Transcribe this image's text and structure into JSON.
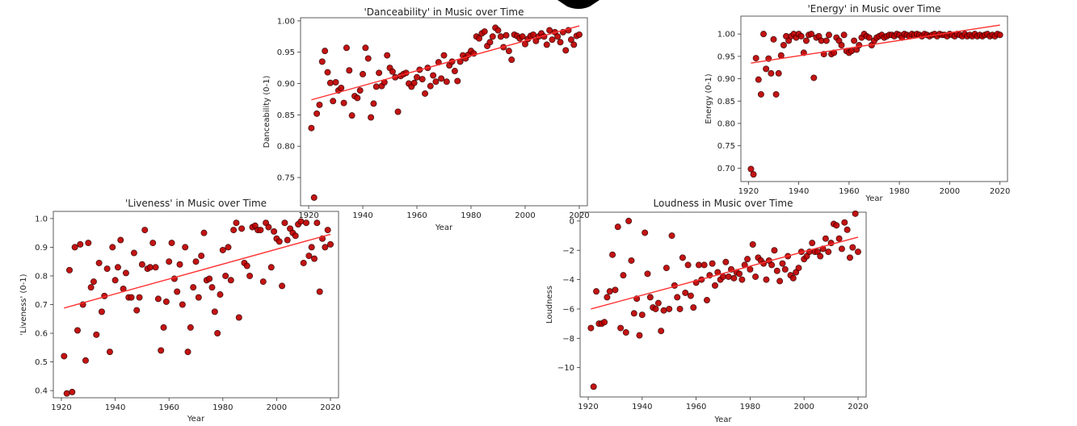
{
  "chart_data": [
    {
      "type": "scatter",
      "title": "'Danceability' in Music over Time",
      "xlabel": "Year",
      "ylabel": "Danceability (0-1)",
      "xlim": [
        1917,
        2023
      ],
      "ylim": [
        0.705,
        1.005
      ],
      "xticks": [
        1920,
        1940,
        1960,
        1980,
        2000,
        2020
      ],
      "yticks": [
        0.75,
        0.8,
        0.85,
        0.9,
        0.95,
        1.0
      ],
      "ytick_labels": [
        "0.75",
        "0.80",
        "0.85",
        "0.90",
        "0.95",
        "1.00"
      ],
      "series": [
        {
          "x": [
            1921,
            1922,
            1923,
            1924,
            1925,
            1926,
            1927,
            1928,
            1929,
            1930,
            1931,
            1932,
            1933,
            1934,
            1935,
            1936,
            1937,
            1938,
            1939,
            1940,
            1941,
            1942,
            1943,
            1944,
            1945,
            1946,
            1947,
            1948,
            1949,
            1950,
            1951,
            1952,
            1953,
            1954,
            1955,
            1956,
            1957,
            1958,
            1959,
            1960,
            1961,
            1962,
            1963,
            1964,
            1965,
            1966,
            1967,
            1968,
            1969,
            1970,
            1971,
            1972,
            1973,
            1974,
            1975,
            1976,
            1977,
            1978,
            1979,
            1980,
            1981,
            1982,
            1983,
            1984,
            1985,
            1986,
            1987,
            1988,
            1989,
            1990,
            1991,
            1992,
            1993,
            1994,
            1995,
            1996,
            1997,
            1998,
            1999,
            2000,
            2001,
            2002,
            2003,
            2004,
            2005,
            2006,
            2007,
            2008,
            2009,
            2010,
            2011,
            2012,
            2013,
            2014,
            2015,
            2016,
            2017,
            2018,
            2019,
            2020
          ],
          "y": [
            0.829,
            0.718,
            0.852,
            0.866,
            0.935,
            0.952,
            0.918,
            0.901,
            0.872,
            0.902,
            0.889,
            0.893,
            0.869,
            0.957,
            0.921,
            0.849,
            0.88,
            0.877,
            0.889,
            0.915,
            0.957,
            0.94,
            0.846,
            0.868,
            0.895,
            0.917,
            0.896,
            0.902,
            0.945,
            0.925,
            0.919,
            0.91,
            0.855,
            0.912,
            0.915,
            0.917,
            0.9,
            0.895,
            0.901,
            0.91,
            0.922,
            0.907,
            0.884,
            0.925,
            0.896,
            0.913,
            0.903,
            0.934,
            0.908,
            0.945,
            0.903,
            0.929,
            0.935,
            0.92,
            0.904,
            0.935,
            0.945,
            0.94,
            0.946,
            0.952,
            0.948,
            0.975,
            0.972,
            0.98,
            0.983,
            0.96,
            0.966,
            0.975,
            0.989,
            0.985,
            0.975,
            0.958,
            0.977,
            0.952,
            0.938,
            0.978,
            0.976,
            0.972,
            0.975,
            0.963,
            0.971,
            0.976,
            0.978,
            0.968,
            0.975,
            0.98,
            0.975,
            0.962,
            0.985,
            0.97,
            0.982,
            0.975,
            0.966,
            0.982,
            0.953,
            0.985,
            0.97,
            0.962,
            0.976,
            0.978
          ]
        }
      ],
      "trend": [
        [
          1921,
          0.874
        ],
        [
          2020,
          0.992
        ]
      ]
    },
    {
      "type": "scatter",
      "title": "'Energy' in Music over Time",
      "xlabel": "Year",
      "ylabel": "Energy (0-1)",
      "xlim": [
        1917,
        2023
      ],
      "ylim": [
        0.67,
        1.04
      ],
      "xticks": [
        1920,
        1940,
        1960,
        1980,
        2000,
        2020
      ],
      "yticks": [
        0.7,
        0.75,
        0.8,
        0.85,
        0.9,
        0.95,
        1.0
      ],
      "ytick_labels": [
        "0.70",
        "0.75",
        "0.80",
        "0.85",
        "0.90",
        "0.95",
        "1.00"
      ],
      "series": [
        {
          "x": [
            1921,
            1922,
            1923,
            1924,
            1925,
            1926,
            1927,
            1928,
            1929,
            1930,
            1931,
            1932,
            1933,
            1934,
            1935,
            1936,
            1937,
            1938,
            1939,
            1940,
            1941,
            1942,
            1943,
            1944,
            1945,
            1946,
            1947,
            1948,
            1949,
            1950,
            1951,
            1952,
            1953,
            1954,
            1955,
            1956,
            1957,
            1958,
            1959,
            1960,
            1961,
            1962,
            1963,
            1964,
            1965,
            1966,
            1967,
            1968,
            1969,
            1970,
            1971,
            1972,
            1973,
            1974,
            1975,
            1976,
            1977,
            1978,
            1979,
            1980,
            1981,
            1982,
            1983,
            1984,
            1985,
            1986,
            1987,
            1988,
            1989,
            1990,
            1991,
            1992,
            1993,
            1994,
            1995,
            1996,
            1997,
            1998,
            1999,
            2000,
            2001,
            2002,
            2003,
            2004,
            2005,
            2006,
            2007,
            2008,
            2009,
            2010,
            2011,
            2012,
            2013,
            2014,
            2015,
            2016,
            2017,
            2018,
            2019,
            2020
          ],
          "y": [
            0.698,
            0.686,
            0.946,
            0.898,
            0.865,
            1.0,
            0.922,
            0.945,
            0.912,
            0.988,
            0.865,
            0.912,
            0.952,
            0.975,
            0.995,
            0.985,
            0.995,
            1.0,
            0.992,
            1.0,
            0.995,
            0.958,
            0.985,
            0.998,
            1.0,
            0.902,
            0.992,
            0.995,
            0.985,
            0.955,
            0.985,
            0.998,
            0.955,
            0.958,
            0.992,
            0.985,
            0.975,
            0.998,
            0.962,
            0.958,
            0.962,
            0.985,
            0.965,
            0.975,
            0.992,
            1.0,
            0.995,
            0.992,
            0.975,
            0.985,
            0.992,
            0.995,
            0.998,
            0.992,
            0.995,
            0.998,
            0.998,
            0.995,
            1.0,
            0.998,
            0.992,
            1.0,
            0.998,
            0.995,
            1.0,
            0.998,
            1.0,
            0.998,
            0.995,
            1.0,
            0.998,
            0.995,
            0.998,
            1.0,
            0.995,
            1.0,
            0.998,
            0.998,
            0.995,
            1.0,
            0.998,
            0.995,
            1.0,
            0.998,
            0.995,
            1.0,
            0.995,
            0.998,
            0.995,
            1.0,
            0.995,
            0.998,
            0.995,
            0.998,
            1.0,
            0.995,
            0.998,
            0.995,
            1.0,
            0.998
          ]
        }
      ],
      "trend": [
        [
          1921,
          0.935
        ],
        [
          2020,
          1.02
        ]
      ]
    },
    {
      "type": "scatter",
      "title": "'Liveness' in Music over Time",
      "xlabel": "Year",
      "ylabel": "'Liveness' (0-1)",
      "xlim": [
        1917,
        2023
      ],
      "ylim": [
        0.375,
        1.025
      ],
      "xticks": [
        1920,
        1940,
        1960,
        1980,
        2000,
        2020
      ],
      "yticks": [
        0.4,
        0.5,
        0.6,
        0.7,
        0.8,
        0.9,
        1.0
      ],
      "ytick_labels": [
        "0.4",
        "0.5",
        "0.6",
        "0.7",
        "0.8",
        "0.9",
        "1.0"
      ],
      "series": [
        {
          "x": [
            1921,
            1922,
            1923,
            1924,
            1925,
            1926,
            1927,
            1928,
            1929,
            1930,
            1931,
            1932,
            1933,
            1934,
            1935,
            1936,
            1937,
            1938,
            1939,
            1940,
            1941,
            1942,
            1943,
            1944,
            1945,
            1946,
            1947,
            1948,
            1949,
            1950,
            1951,
            1952,
            1953,
            1954,
            1955,
            1956,
            1957,
            1958,
            1959,
            1960,
            1961,
            1962,
            1963,
            1964,
            1965,
            1966,
            1967,
            1968,
            1969,
            1970,
            1971,
            1972,
            1973,
            1974,
            1975,
            1976,
            1977,
            1978,
            1979,
            1980,
            1981,
            1982,
            1983,
            1984,
            1985,
            1986,
            1987,
            1988,
            1989,
            1990,
            1991,
            1992,
            1993,
            1994,
            1995,
            1996,
            1997,
            1998,
            1999,
            2000,
            2001,
            2002,
            2003,
            2004,
            2005,
            2006,
            2007,
            2008,
            2009,
            2010,
            2011,
            2012,
            2013,
            2014,
            2015,
            2016,
            2017,
            2018,
            2019,
            2020
          ],
          "y": [
            0.52,
            0.39,
            0.82,
            0.395,
            0.9,
            0.61,
            0.91,
            0.7,
            0.505,
            0.915,
            0.76,
            0.78,
            0.595,
            0.845,
            0.675,
            0.73,
            0.825,
            0.535,
            0.9,
            0.785,
            0.83,
            0.925,
            0.755,
            0.81,
            0.725,
            0.725,
            0.88,
            0.68,
            0.725,
            0.84,
            0.96,
            0.825,
            0.83,
            0.915,
            0.83,
            0.72,
            0.54,
            0.62,
            0.71,
            0.85,
            0.915,
            0.79,
            0.745,
            0.84,
            0.7,
            0.9,
            0.535,
            0.62,
            0.76,
            0.85,
            0.725,
            0.87,
            0.95,
            0.785,
            0.79,
            0.76,
            0.675,
            0.6,
            0.735,
            0.89,
            0.8,
            0.9,
            0.785,
            0.96,
            0.985,
            0.655,
            0.965,
            0.845,
            0.835,
            0.8,
            0.97,
            0.975,
            0.96,
            0.96,
            0.78,
            0.985,
            0.97,
            0.83,
            0.955,
            0.93,
            0.92,
            0.765,
            0.985,
            0.925,
            0.965,
            0.95,
            0.94,
            0.98,
            0.99,
            0.845,
            0.985,
            0.87,
            0.9,
            0.86,
            0.985,
            0.745,
            0.93,
            0.9,
            0.96,
            0.91
          ],
          "_": null
        }
      ],
      "trend": [
        [
          1921,
          0.688
        ],
        [
          2020,
          0.945
        ]
      ]
    },
    {
      "type": "scatter",
      "title": "Loudness in Music over Time",
      "xlabel": "Year",
      "ylabel": "Loudness",
      "xlim": [
        1917,
        2023
      ],
      "ylim": [
        -12.0,
        0.6
      ],
      "xticks": [
        1920,
        1940,
        1960,
        1980,
        2000,
        2020
      ],
      "yticks": [
        0,
        -2,
        -4,
        -6,
        -8,
        -10
      ],
      "ytick_labels": [
        "0",
        "−2",
        "−4",
        "−6",
        "−8",
        "−10"
      ],
      "series": [
        {
          "x": [
            1921,
            1922,
            1923,
            1924,
            1925,
            1926,
            1927,
            1928,
            1929,
            1930,
            1931,
            1932,
            1933,
            1934,
            1935,
            1936,
            1937,
            1938,
            1939,
            1940,
            1941,
            1942,
            1943,
            1944,
            1945,
            1946,
            1947,
            1948,
            1949,
            1950,
            1951,
            1952,
            1953,
            1954,
            1955,
            1956,
            1957,
            1958,
            1959,
            1960,
            1961,
            1962,
            1963,
            1964,
            1965,
            1966,
            1967,
            1968,
            1969,
            1970,
            1971,
            1972,
            1973,
            1974,
            1975,
            1976,
            1977,
            1978,
            1979,
            1980,
            1981,
            1982,
            1983,
            1984,
            1985,
            1986,
            1987,
            1988,
            1989,
            1990,
            1991,
            1992,
            1993,
            1994,
            1995,
            1996,
            1997,
            1998,
            1999,
            2000,
            2001,
            2002,
            2003,
            2004,
            2005,
            2006,
            2007,
            2008,
            2009,
            2010,
            2011,
            2012,
            2013,
            2014,
            2015,
            2016,
            2017,
            2018,
            2019,
            2020
          ],
          "y": [
            -7.3,
            -11.3,
            -4.8,
            -7.0,
            -7.0,
            -6.9,
            -5.2,
            -4.8,
            -2.3,
            -4.7,
            -0.4,
            -7.3,
            -3.7,
            -7.6,
            0.0,
            -2.7,
            -6.3,
            -5.3,
            -7.8,
            -6.4,
            -0.8,
            -3.6,
            -5.2,
            -5.9,
            -6.0,
            -5.6,
            -7.5,
            -6.1,
            -3.2,
            -6.0,
            -1.0,
            -4.4,
            -5.2,
            -6.0,
            -2.5,
            -4.9,
            -3.0,
            -5.1,
            -5.9,
            -4.2,
            -3.0,
            -4.0,
            -3.0,
            -5.4,
            -3.7,
            -2.9,
            -4.4,
            -3.5,
            -4.0,
            -3.8,
            -2.8,
            -3.8,
            -3.3,
            -3.9,
            -3.5,
            -3.6,
            -4.0,
            -3.0,
            -2.6,
            -3.3,
            -1.6,
            -3.8,
            -2.5,
            -2.7,
            -2.9,
            -4.0,
            -2.7,
            -3.0,
            -2.0,
            -3.4,
            -4.1,
            -2.9,
            -3.3,
            -2.4,
            -3.7,
            -3.9,
            -3.5,
            -3.2,
            -2.1,
            -2.6,
            -2.4,
            -2.1,
            -1.5,
            -2.1,
            -2.1,
            -2.4,
            -1.9,
            -1.2,
            -2.1,
            -1.5,
            -0.2,
            -0.3,
            -1.2,
            -1.9,
            -0.1,
            -0.6,
            -2.5,
            -1.8,
            0.5,
            -2.1
          ],
          "_": null
        }
      ],
      "trend": [
        [
          1921,
          -6.0
        ],
        [
          2020,
          -1.1
        ]
      ]
    }
  ]
}
